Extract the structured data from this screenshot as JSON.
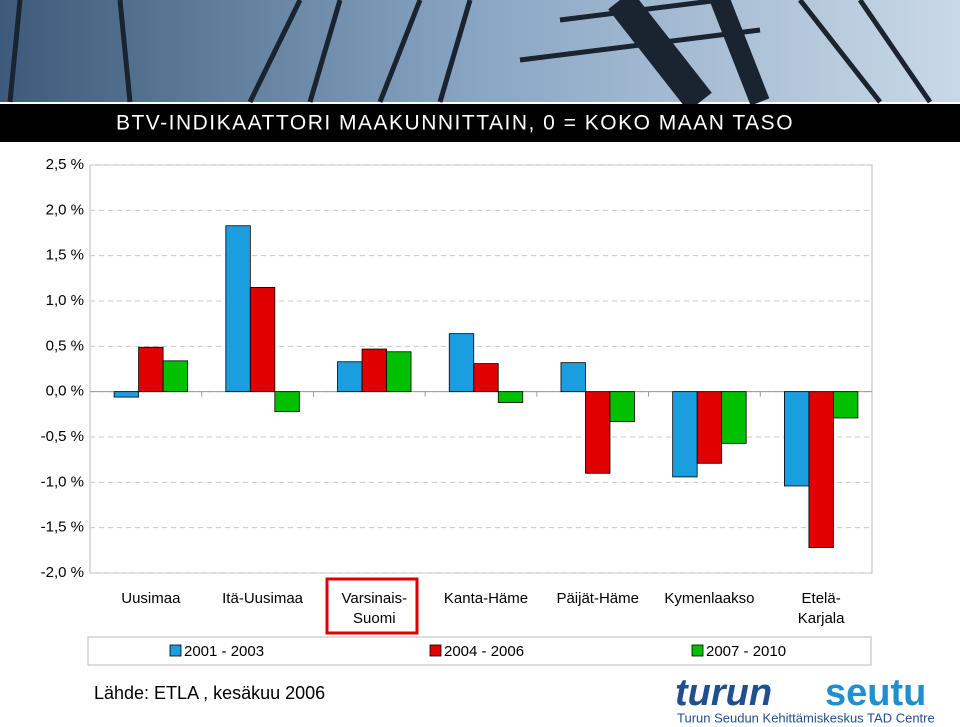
{
  "chart_data": {
    "type": "bar",
    "title": "BTV-INDIKAATTORI MAAKUNNITTAIN, 0 = KOKO MAAN TASO",
    "categories": [
      "Uusimaa",
      "Itä-Uusimaa",
      "Varsinais-Suomi",
      "Kanta-Häme",
      "Päijät-Häme",
      "Kymenlaakso",
      "Etelä-Karjala"
    ],
    "series": [
      {
        "name": "2001 - 2003",
        "color": "#1a9ee0",
        "values": [
          -0.06,
          1.83,
          0.33,
          0.64,
          0.32,
          -0.94,
          -1.04
        ]
      },
      {
        "name": "2004 - 2006",
        "color": "#e00000",
        "values": [
          0.49,
          1.15,
          0.47,
          0.31,
          -0.9,
          -0.79,
          -1.72
        ]
      },
      {
        "name": "2007 - 2010",
        "color": "#00c000",
        "values": [
          0.34,
          -0.22,
          0.44,
          -0.12,
          -0.33,
          -0.57,
          -0.29
        ]
      }
    ],
    "ylim": [
      -2,
      2.5
    ],
    "yticks": [
      {
        "value": -2,
        "label": "-2,0 %"
      },
      {
        "value": -1.5,
        "label": "-1,5 %"
      },
      {
        "value": -1,
        "label": "-1,0 %"
      },
      {
        "value": -0.5,
        "label": "-0,5 %"
      },
      {
        "value": 0,
        "label": "0,0 %"
      },
      {
        "value": 0.5,
        "label": "0,5 %"
      },
      {
        "value": 1,
        "label": "1,0 %"
      },
      {
        "value": 1.5,
        "label": "1,5 %"
      },
      {
        "value": 2,
        "label": "2,0 %"
      },
      {
        "value": 2.5,
        "label": "2,5 %"
      }
    ],
    "grid": true,
    "legend": "bottom"
  },
  "source": "Lähde: ETLA , kesäkuu 2006",
  "logo": {
    "left": "turun",
    "right": "seutu",
    "subtitle": "Turun Seudun Kehittämiskeskus TAD Centre"
  }
}
